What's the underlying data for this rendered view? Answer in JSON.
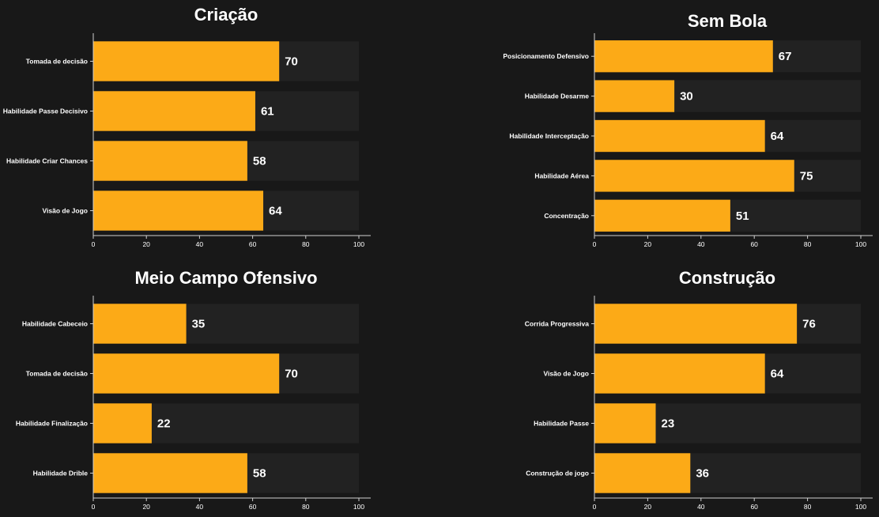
{
  "colors": {
    "background": "#181818",
    "track": "#222222",
    "bar": "#fcaa17",
    "axis": "#d0d0d0",
    "text": "#ffffff"
  },
  "chart_data": [
    {
      "type": "bar",
      "orientation": "horizontal",
      "title": "Criação",
      "categories": [
        "Tomada de decisão",
        "Habilidade Passe Decisivo",
        "Habilidade Criar Chances",
        "Visão de Jogo"
      ],
      "values": [
        70,
        61,
        58,
        64
      ],
      "xlim": [
        0,
        100
      ],
      "xticks": [
        0,
        20,
        40,
        60,
        80,
        100
      ],
      "data_labels": true,
      "grid": false
    },
    {
      "type": "bar",
      "orientation": "horizontal",
      "title": "Sem Bola",
      "categories": [
        "Posicionamento Defensivo",
        "Habilidade Desarme",
        "Habilidade Interceptação",
        "Habilidade Aérea",
        "Concentração"
      ],
      "values": [
        67,
        30,
        64,
        75,
        51
      ],
      "xlim": [
        0,
        100
      ],
      "xticks": [
        0,
        20,
        40,
        60,
        80,
        100
      ],
      "data_labels": true,
      "grid": false
    },
    {
      "type": "bar",
      "orientation": "horizontal",
      "title": "Meio Campo Ofensivo",
      "categories": [
        "Habilidade Cabeceio",
        "Tomada de decisão",
        "Habilidade Finalização",
        "Habilidade Drible"
      ],
      "values": [
        35,
        70,
        22,
        58
      ],
      "xlim": [
        0,
        100
      ],
      "xticks": [
        0,
        20,
        40,
        60,
        80,
        100
      ],
      "data_labels": true,
      "grid": false
    },
    {
      "type": "bar",
      "orientation": "horizontal",
      "title": "Construção",
      "categories": [
        "Corrida Progressiva",
        "Visão de Jogo",
        "Habilidade Passe",
        "Construção de jogo"
      ],
      "values": [
        76,
        64,
        23,
        36
      ],
      "xlim": [
        0,
        100
      ],
      "xticks": [
        0,
        20,
        40,
        60,
        80,
        100
      ],
      "data_labels": true,
      "grid": false
    }
  ]
}
